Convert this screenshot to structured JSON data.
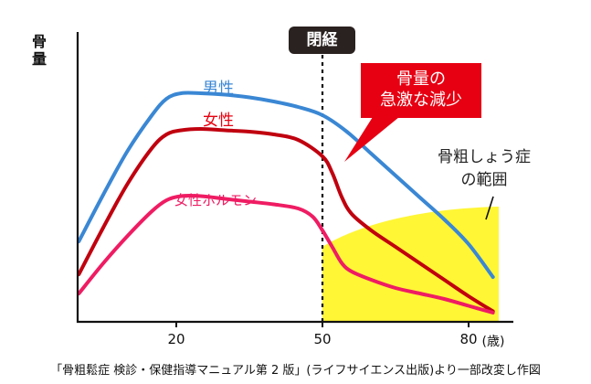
{
  "chart_data": {
    "type": "line",
    "title": "",
    "xlabel": "",
    "ylabel": "骨量",
    "x_unit": "(歳)",
    "xlim": [
      0,
      86
    ],
    "ylim": [
      0,
      100
    ],
    "x_ticks": [
      20,
      50,
      80
    ],
    "x_tick_labels": [
      "20",
      "50",
      "80"
    ],
    "grid": false,
    "series": [
      {
        "name": "男性",
        "color": "#3a87d4",
        "x": [
          0,
          5,
          10,
          15,
          18,
          21,
          25,
          30,
          35,
          40,
          45,
          50,
          55,
          60,
          65,
          70,
          75,
          80,
          85
        ],
        "values": [
          27,
          44,
          60,
          73,
          79,
          81,
          81,
          80.5,
          79.5,
          78,
          76,
          73,
          67,
          59,
          51,
          43,
          35,
          26,
          14
        ]
      },
      {
        "name": "女性",
        "color": "#c0000f",
        "x": [
          0,
          5,
          10,
          15,
          18,
          21,
          25,
          30,
          35,
          40,
          45,
          50,
          52,
          54,
          56,
          60,
          65,
          70,
          75,
          80,
          85
        ],
        "values": [
          15,
          32,
          48,
          61,
          66,
          67.5,
          68,
          67.5,
          67,
          66,
          64,
          58,
          52,
          43,
          37,
          31,
          25,
          19,
          13,
          7,
          1.5
        ]
      },
      {
        "name": "女性ホルモン",
        "color": "#ef1c63",
        "x": [
          0,
          5,
          10,
          15,
          18,
          21,
          25,
          30,
          35,
          40,
          45,
          48,
          50,
          52,
          54,
          56,
          60,
          65,
          70,
          75,
          80,
          85
        ],
        "values": [
          8,
          19,
          29,
          38,
          42,
          43.5,
          43.5,
          42.5,
          41.5,
          40.5,
          39,
          36,
          31,
          25,
          19,
          16,
          13,
          10,
          8,
          6,
          3.5,
          1
        ]
      }
    ],
    "annotations": [
      {
        "text": "閉経",
        "x": 50,
        "style": "dashed vertical line with dark label"
      },
      {
        "text": "骨量の\n急激な減少",
        "style": "red callout"
      },
      {
        "text": "骨粗しょう症\nの範囲",
        "style": "yellow shaded region after 50"
      }
    ],
    "shaded_region": {
      "name": "骨粗しょう症の範囲",
      "color": "#fff636",
      "x_from": 50,
      "x_to": 86
    }
  },
  "labels": {
    "ylabel_line1": "骨",
    "ylabel_line2": "量",
    "menopause": "閉経",
    "callout_line1": "骨量の",
    "callout_line2": "急激な減少",
    "male": "男性",
    "female": "女性",
    "hormone": "女性ホルモン",
    "osteo_line1": "骨粗しょう症",
    "osteo_line2": "の範囲",
    "tick_20": "20",
    "tick_50": "50",
    "tick_80": "80",
    "unit": "(歳)",
    "caption": "「骨粗鬆症 検診・保健指導マニュアル第 2 版」(ライフサイエンス出版)より一部改変し作図"
  },
  "colors": {
    "male": "#3a87d4",
    "female": "#c0000f",
    "hormone": "#ef1c63",
    "osteo_region": "#fff636",
    "callout": "#e60012",
    "badge": "#2a2220"
  }
}
